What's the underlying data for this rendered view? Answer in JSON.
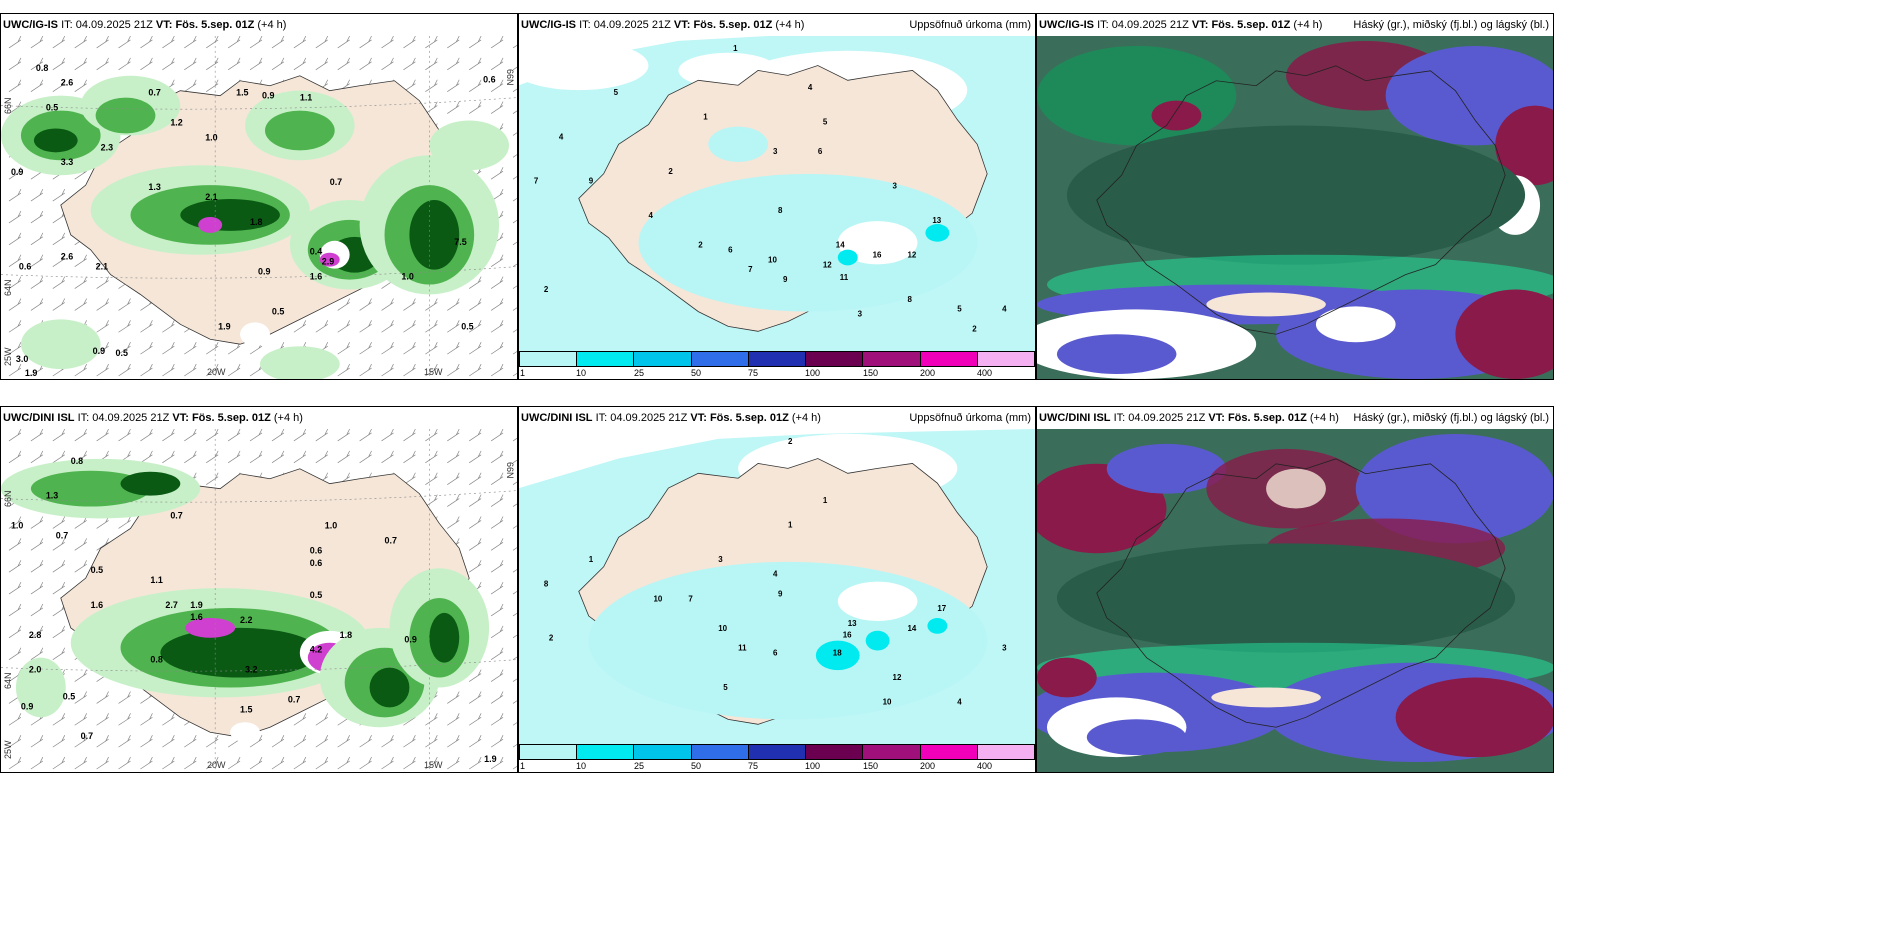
{
  "rows": [
    {
      "model": "UWC/IG-IS",
      "it_label": "IT:",
      "it_value": "04.09.2025 21Z",
      "vt_label": "VT:",
      "vt_value": "Fös. 5.sep. 01Z",
      "lead": "(+4 h)"
    },
    {
      "model": "UWC/DINI ISL",
      "it_label": "IT:",
      "it_value": "04.09.2025 21Z",
      "vt_label": "VT:",
      "vt_value": "Fös. 5.sep. 01Z",
      "lead": "(+4 h)"
    }
  ],
  "precip_title": "Uppsöfnuð úrkoma (mm)",
  "cloud_title": "Háský (gr.), miðský (fj.bl.) og lágský (bl.)",
  "axis": {
    "lat_66": "66N",
    "lat_64": "64N",
    "lat_64b": "64N",
    "lon_25": "25W",
    "lon_20": "20W",
    "lon_15": "15W",
    "lat_66r": "66N"
  },
  "colorbar": {
    "ticks": [
      "1",
      "10",
      "25",
      "50",
      "75",
      "100",
      "150",
      "200",
      "400"
    ],
    "colors": [
      "#b8f5f5",
      "#00eaf0",
      "#00c4ea",
      "#2f6ee8",
      "#2030b0",
      "#6c0050",
      "#a0107a",
      "#f000b8",
      "#f4b0f0"
    ]
  },
  "colors": {
    "land": "#f5e6d8",
    "green_light": "#c8f0c8",
    "green_mid": "#4fb44f",
    "green_dark": "#0a5a14",
    "magenta": "#d040d0",
    "cyan_light": "#b8f5f5",
    "cloud_dark": "#2a5c4a",
    "cloud_mid": "#1e8a5a",
    "cloud_high": "#5a5ad0",
    "cloud_low": "#8a1a4a",
    "cloud_edge": "#20e8a0"
  },
  "top_precip_values": [
    "0.8",
    "2.6",
    "0.7",
    "1.5",
    "0.9",
    "1.1",
    "0.6",
    "0.5",
    "1.2",
    "1.0",
    "3.3",
    "2.3",
    "0.9",
    "1.3",
    "2.1",
    "0.7",
    "1.8",
    "0.4",
    "2.9",
    "1.6",
    "0.6",
    "2.6",
    "2.1",
    "0.5",
    "1.0",
    "7.5",
    "0.9",
    "1.9",
    "0.5",
    "0.9",
    "0.5",
    "3.0",
    "1.9"
  ],
  "bottom_precip_values": [
    "0.8",
    "1.3",
    "0.7",
    "1.0",
    "0.7",
    "0.6",
    "1.0",
    "0.6",
    "0.5",
    "1.1",
    "2.7",
    "1.9",
    "1.6",
    "2.2",
    "3.2",
    "0.5",
    "1.8",
    "4.2",
    "1.6",
    "0.7",
    "0.8",
    "0.9",
    "2.8",
    "2.0",
    "0.5",
    "1.5",
    "0.7",
    "0.9",
    "0.7",
    "1.9"
  ],
  "top_accum_values": [
    "1",
    "4",
    "5",
    "3",
    "4",
    "5",
    "1",
    "7",
    "2",
    "9",
    "4",
    "6",
    "2",
    "8",
    "6",
    "3",
    "7",
    "13",
    "14",
    "12",
    "11",
    "16",
    "12",
    "9",
    "10",
    "5",
    "8",
    "3",
    "2",
    "4",
    "2"
  ],
  "bottom_accum_values": [
    "2",
    "1",
    "8",
    "1",
    "3",
    "4",
    "10",
    "7",
    "10",
    "9",
    "11",
    "6",
    "17",
    "13",
    "14",
    "16",
    "18",
    "12",
    "10",
    "5",
    "4",
    "3",
    "2",
    "1"
  ]
}
